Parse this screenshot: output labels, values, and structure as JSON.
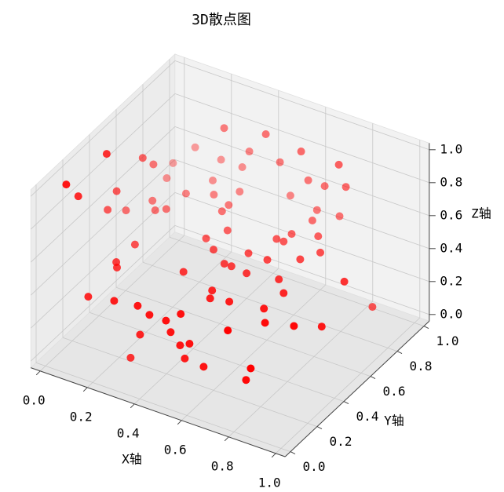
{
  "chart_data": {
    "type": "scatter3d",
    "title": "3D散点图",
    "x_label": "X轴",
    "y_label": "Y轴",
    "z_label": "Z轴",
    "color": "#ff0000",
    "x": [
      0.22,
      0.38,
      0.08,
      0.31,
      0.53,
      0.05,
      0.05,
      0.19,
      0.44,
      0.69,
      0.05,
      0.02,
      0.28,
      0.2,
      0.05,
      0.56,
      0.63,
      0.72,
      0.02,
      0.03,
      0.32,
      0.25,
      0.02,
      0.49,
      0.08,
      0.16,
      0.33,
      0.62,
      0.71,
      0.02,
      0.03,
      0.12,
      0.15,
      0.33,
      0.64,
      0.41,
      0.62,
      0.71,
      0.59,
      0.37,
      0.17,
      0.62,
      0.55,
      0.43,
      0.63,
      0.73,
      0.77,
      0.17,
      0.19,
      0.51,
      0.54,
      0.41,
      0.61,
      0.73,
      0.94,
      0.56,
      0.58,
      0.65,
      0.17,
      0.28,
      0.38,
      0.79,
      0.78,
      0.43,
      0.54,
      0.5,
      0.83,
      0.93,
      0.98,
      0.52,
      0.74,
      0.39,
      0.98,
      0.56,
      0.6,
      0.35,
      0.58,
      0.66,
      0.86,
      0.84
    ],
    "y": [
      0.95,
      0.98,
      0.98,
      0.98,
      0.98,
      0.37,
      0.64,
      0.98,
      0.98,
      0.98,
      0.72,
      0.92,
      0.98,
      0.9,
      0.82,
      0.98,
      0.98,
      0.98,
      0.12,
      0.48,
      0.89,
      0.82,
      0.21,
      0.97,
      0.66,
      0.77,
      0.79,
      0.94,
      0.95,
      0.43,
      0.55,
      0.61,
      0.64,
      0.74,
      0.87,
      0.64,
      0.75,
      0.79,
      0.69,
      0.55,
      0.37,
      0.69,
      0.55,
      0.5,
      0.55,
      0.62,
      0.7,
      0.23,
      0.2,
      0.44,
      0.44,
      0.31,
      0.43,
      0.46,
      0.58,
      0.26,
      0.21,
      0.23,
      0.02,
      0.02,
      0.02,
      0.39,
      0.26,
      0.02,
      0.06,
      0.02,
      0.18,
      0.22,
      0.34,
      0.02,
      0.06,
      0.02,
      0.72,
      0.02,
      0.02,
      0.02,
      0.02,
      0.02,
      0.02,
      0.02
    ],
    "z": [
      0.79,
      0.81,
      0.58,
      0.67,
      0.78,
      0.99,
      0.76,
      0.56,
      0.67,
      0.78,
      0.66,
      0.5,
      0.56,
      0.5,
      0.5,
      0.62,
      0.62,
      0.66,
      0.98,
      0.67,
      0.5,
      0.5,
      0.84,
      0.5,
      0.5,
      0.5,
      0.5,
      0.5,
      0.5,
      0.59,
      0.5,
      0.5,
      0.5,
      0.5,
      0.5,
      0.5,
      0.5,
      0.5,
      0.5,
      0.5,
      0.5,
      0.5,
      0.5,
      0.5,
      0.5,
      0.5,
      0.5,
      0.5,
      0.5,
      0.5,
      0.5,
      0.5,
      0.5,
      0.5,
      0.5,
      0.5,
      0.5,
      0.5,
      0.45,
      0.48,
      0.5,
      0.5,
      0.5,
      0.47,
      0.5,
      0.47,
      0.5,
      0.5,
      0.43,
      0.41,
      0.5,
      0.33,
      0.26,
      0.35,
      0.38,
      0.17,
      0.28,
      0.27,
      0.36,
      0.28
    ],
    "xlim": [
      0,
      1
    ],
    "ylim": [
      0,
      1
    ],
    "zlim": [
      0,
      1
    ],
    "xticks": [
      {
        "value": 0,
        "label": "0.0"
      },
      0.2,
      0.4,
      0.6,
      0.8,
      {
        "value": 1,
        "label": "1.0"
      }
    ],
    "yticks": [
      {
        "value": 0,
        "label": "0.0"
      },
      0.2,
      0.4,
      0.6,
      0.8,
      {
        "value": 1,
        "label": "1.0"
      }
    ],
    "zticks": [
      {
        "value": 0,
        "label": "0.0"
      },
      0.2,
      0.4,
      0.6,
      0.8,
      {
        "value": 1,
        "label": "1.0"
      }
    ],
    "grid": true
  }
}
